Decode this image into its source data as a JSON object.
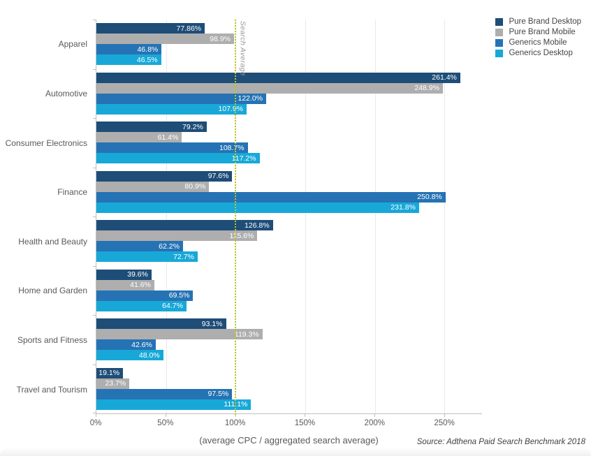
{
  "chart_data": {
    "type": "bar",
    "orientation": "horizontal",
    "title": "",
    "xlabel": "(average CPC / aggregated search average)",
    "source": "Source: Adthena Paid Search Benchmark 2018",
    "categories": [
      "Apparel",
      "Automotive",
      "Consumer Electronics",
      "Finance",
      "Health and Beauty",
      "Home and Garden",
      "Sports and Fitness",
      "Travel and Tourism"
    ],
    "series": [
      {
        "name": "Pure Brand Desktop",
        "color": "#1e4d78",
        "values": [
          77.86,
          261.4,
          79.2,
          97.6,
          126.8,
          39.6,
          93.1,
          19.1
        ],
        "labels": [
          "77.86%",
          "261.4%",
          "79.2%",
          "97.6%",
          "126.8%",
          "39.6%",
          "93.1%",
          "19.1%"
        ]
      },
      {
        "name": "Pure Brand Mobile",
        "color": "#aeaeae",
        "values": [
          98.9,
          248.9,
          61.4,
          80.9,
          115.6,
          41.6,
          119.3,
          23.7
        ],
        "labels": [
          "98.9%",
          "248.9%",
          "61.4%",
          "80.9%",
          "115.6%",
          "41.6%",
          "119.3%",
          "23.7%"
        ]
      },
      {
        "name": "Generics Mobile",
        "color": "#2573b4",
        "values": [
          46.8,
          122.0,
          108.7,
          250.8,
          62.2,
          69.5,
          42.6,
          97.5
        ],
        "labels": [
          "46.8%",
          "122.0%",
          "108.7%",
          "250.8%",
          "62.2%",
          "69.5%",
          "42.6%",
          "97.5%"
        ]
      },
      {
        "name": "Generics Desktop",
        "color": "#18a8d8",
        "values": [
          46.5,
          107.9,
          117.2,
          231.8,
          72.7,
          64.7,
          48.0,
          111.1
        ],
        "labels": [
          "46.5%",
          "107.9%",
          "117.2%",
          "231.8%",
          "72.7%",
          "64.7%",
          "48.0%",
          "111.1%"
        ]
      }
    ],
    "x_ticks": [
      {
        "value": 0,
        "label": "0%"
      },
      {
        "value": 50,
        "label": "50%"
      },
      {
        "value": 100,
        "label": "100%"
      },
      {
        "value": 150,
        "label": "150%"
      },
      {
        "value": 200,
        "label": "200%"
      },
      {
        "value": 250,
        "label": "250%"
      }
    ],
    "x_max": 277,
    "grid": true,
    "legend_position": "top-right",
    "reference_line": {
      "value": 100,
      "label": "Search Average",
      "color": "#bcc918"
    }
  }
}
